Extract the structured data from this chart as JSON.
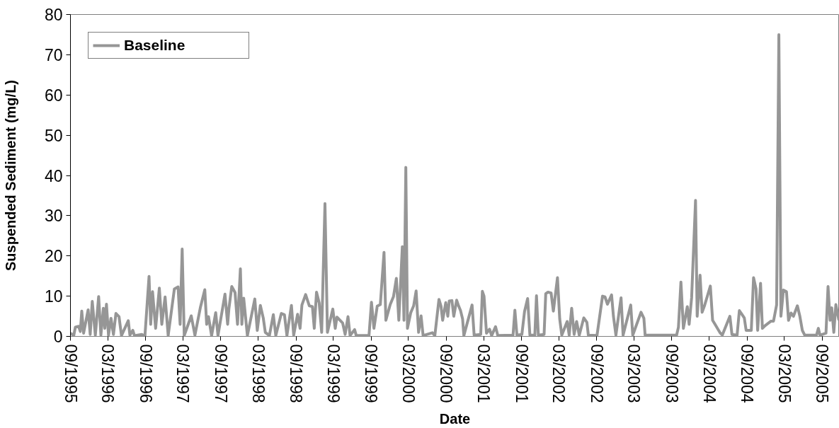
{
  "chart_data": {
    "type": "line",
    "xlabel": "Date",
    "ylabel": "Suspended Sediment (mg/L)",
    "legend": "top left",
    "line_style": "solid",
    "xlim": [
      "1995-09-01",
      "2005-11-24"
    ],
    "xticks": [
      {
        "value": "1995-09",
        "label": "09/1995"
      },
      {
        "value": "1996-03",
        "label": "03/1996"
      },
      {
        "value": "1996-09",
        "label": "09/1996"
      },
      {
        "value": "1997-03",
        "label": "03/1997"
      },
      {
        "value": "1997-09",
        "label": "09/1997"
      },
      {
        "value": "1998-03",
        "label": "03/1998"
      },
      {
        "value": "1998-09",
        "label": "09/1998"
      },
      {
        "value": "1999-03",
        "label": "03/1999"
      },
      {
        "value": "1999-09",
        "label": "09/1999"
      },
      {
        "value": "2000-03",
        "label": "03/2000"
      },
      {
        "value": "2000-09",
        "label": "09/2000"
      },
      {
        "value": "2001-03",
        "label": "03/2001"
      },
      {
        "value": "2001-09",
        "label": "09/2001"
      },
      {
        "value": "2002-03",
        "label": "03/2002"
      },
      {
        "value": "2002-09",
        "label": "09/2002"
      },
      {
        "value": "2003-03",
        "label": "03/2003"
      },
      {
        "value": "2003-09",
        "label": "09/2003"
      },
      {
        "value": "2004-03",
        "label": "03/2004"
      },
      {
        "value": "2004-09",
        "label": "09/2004"
      },
      {
        "value": "2005-03",
        "label": "03/2005"
      },
      {
        "value": "2005-09",
        "label": "09/2005"
      }
    ],
    "ylim": [
      0,
      80
    ],
    "yticks": [
      0,
      10,
      20,
      30,
      40,
      50,
      60,
      70,
      80
    ],
    "x": [
      "1995-09-01",
      "1995-09-17",
      "1995-09-25",
      "1995-10-11",
      "1995-10-19",
      "1995-10-26",
      "1995-11-04",
      "1995-11-26",
      "1995-12-06",
      "1995-12-16",
      "1995-12-31",
      "1996-01-16",
      "1996-01-27",
      "1996-02-08",
      "1996-02-15",
      "1996-02-23",
      "1996-03-04",
      "1996-03-16",
      "1996-03-28",
      "1996-04-09",
      "1996-04-24",
      "1996-05-06",
      "1996-06-08",
      "1996-06-16",
      "1996-06-30",
      "1996-07-08",
      "1996-08-13",
      "1996-08-28",
      "1996-09-17",
      "1996-09-25",
      "1996-10-04",
      "1996-10-19",
      "1996-11-06",
      "1996-11-18",
      "1996-12-04",
      "1996-12-19",
      "1997-01-18",
      "1997-02-05",
      "1997-02-15",
      "1997-02-25",
      "1997-03-07",
      "1997-04-10",
      "1997-04-28",
      "1997-05-25",
      "1997-06-15",
      "1997-06-24",
      "1997-07-03",
      "1997-07-18",
      "1997-08-07",
      "1997-08-18",
      "1997-09-21",
      "1997-10-04",
      "1997-10-10",
      "1997-10-24",
      "1997-11-09",
      "1997-11-21",
      "1997-12-05",
      "1997-12-12",
      "1997-12-21",
      "1998-01-08",
      "1998-02-13",
      "1998-02-25",
      "1998-03-12",
      "1998-03-26",
      "1998-04-05",
      "1998-04-25",
      "1998-05-14",
      "1998-05-26",
      "1998-06-22",
      "1998-07-07",
      "1998-07-19",
      "1998-08-10",
      "1998-08-21",
      "1998-09-09",
      "1998-09-21",
      "1998-09-30",
      "1998-10-18",
      "1998-11-05",
      "1998-11-20",
      "1998-11-29",
      "1998-12-10",
      "1998-12-23",
      "1999-01-04",
      "1999-01-20",
      "1999-02-01",
      "1999-02-27",
      "1999-03-11",
      "1999-03-19",
      "1999-04-16",
      "1999-04-28",
      "1999-05-12",
      "1999-05-22",
      "1999-06-13",
      "1999-06-21",
      "1999-08-22",
      "1999-09-03",
      "1999-09-15",
      "1999-10-01",
      "1999-10-16",
      "1999-11-03",
      "1999-11-12",
      "1999-12-03",
      "1999-12-19",
      "2000-01-02",
      "2000-01-14",
      "2000-01-31",
      "2000-02-08",
      "2000-02-17",
      "2000-02-25",
      "2000-03-12",
      "2000-03-26",
      "2000-04-07",
      "2000-04-19",
      "2000-05-01",
      "2000-05-11",
      "2000-06-25",
      "2000-07-07",
      "2000-07-27",
      "2000-08-06",
      "2000-08-14",
      "2000-08-29",
      "2000-09-08",
      "2000-09-15",
      "2000-09-28",
      "2000-10-07",
      "2000-10-21",
      "2000-10-31",
      "2000-11-09",
      "2000-11-19",
      "2000-11-25",
      "2001-01-04",
      "2001-01-14",
      "2001-02-15",
      "2001-02-23",
      "2001-03-03",
      "2001-03-15",
      "2001-03-30",
      "2001-04-09",
      "2001-04-28",
      "2001-05-09",
      "2001-07-22",
      "2001-07-31",
      "2001-08-10",
      "2001-09-03",
      "2001-09-16",
      "2001-10-01",
      "2001-10-12",
      "2001-11-05",
      "2001-11-13",
      "2001-11-22",
      "2001-12-20",
      "2001-12-28",
      "2002-01-08",
      "2002-01-23",
      "2002-02-03",
      "2002-02-23",
      "2002-03-06",
      "2002-03-16",
      "2002-04-11",
      "2002-04-21",
      "2002-05-03",
      "2002-05-15",
      "2002-05-27",
      "2002-06-09",
      "2002-07-01",
      "2002-07-16",
      "2002-07-23",
      "2002-09-03",
      "2002-09-30",
      "2002-10-12",
      "2002-10-24",
      "2002-11-13",
      "2002-11-22",
      "2002-12-04",
      "2002-12-29",
      "2003-01-08",
      "2003-02-14",
      "2003-02-24",
      "2003-04-05",
      "2003-04-19",
      "2003-04-25",
      "2003-09-25",
      "2003-10-04",
      "2003-10-16",
      "2003-10-28",
      "2003-11-16",
      "2003-11-25",
      "2003-12-07",
      "2003-12-26",
      "2004-01-03",
      "2004-01-17",
      "2004-01-27",
      "2004-02-08",
      "2004-03-07",
      "2004-03-18",
      "2004-03-30",
      "2004-04-22",
      "2004-05-04",
      "2004-06-10",
      "2004-06-20",
      "2004-07-15",
      "2004-07-26",
      "2004-08-07",
      "2004-08-19",
      "2004-08-28",
      "2004-09-22",
      "2004-10-03",
      "2004-10-15",
      "2004-10-23",
      "2004-11-06",
      "2004-11-15",
      "2004-11-29",
      "2004-12-27",
      "2005-01-08",
      "2005-01-23",
      "2005-02-03",
      "2005-02-13",
      "2005-02-25",
      "2005-03-12",
      "2005-03-22",
      "2005-04-03",
      "2005-04-15",
      "2005-05-04",
      "2005-05-16",
      "2005-05-28",
      "2005-06-09",
      "2005-08-05",
      "2005-08-14",
      "2005-08-22",
      "2005-09-20",
      "2005-09-30",
      "2005-10-10",
      "2005-10-18",
      "2005-10-28",
      "2005-11-07",
      "2005-11-22"
    ],
    "series": [
      {
        "name": "Baseline",
        "color": "#969696",
        "values": [
          0.8,
          0.2,
          2.3,
          2.5,
          1.2,
          6.3,
          0.8,
          6.6,
          0.5,
          8.7,
          0.3,
          9.9,
          0.3,
          7.0,
          2.0,
          8.0,
          0.3,
          4.5,
          0.5,
          5.7,
          4.9,
          0.2,
          3.9,
          0.3,
          1.5,
          0.2,
          0.5,
          0.1,
          14.9,
          3.0,
          11.1,
          2.0,
          12.0,
          3.0,
          9.8,
          0.2,
          11.8,
          12.3,
          3.0,
          21.7,
          0.2,
          5.1,
          0.3,
          7.3,
          11.6,
          3.0,
          4.9,
          0.2,
          5.9,
          0.2,
          10.5,
          3.0,
          6.8,
          12.4,
          10.9,
          3.0,
          16.8,
          3.0,
          9.5,
          0.2,
          9.3,
          1.5,
          7.7,
          4.6,
          1.0,
          0.2,
          5.4,
          0.2,
          5.7,
          5.4,
          0.2,
          7.7,
          0.3,
          5.5,
          2.0,
          7.8,
          10.4,
          7.6,
          7.4,
          2.0,
          11.0,
          8.3,
          1.0,
          33.0,
          1.0,
          6.8,
          2.0,
          4.8,
          3.3,
          0.5,
          4.9,
          0.2,
          1.7,
          0.2,
          0.2,
          8.5,
          2.0,
          7.5,
          7.9,
          20.9,
          4.0,
          7.9,
          9.9,
          14.4,
          4.0,
          22.3,
          4.0,
          42.0,
          2.0,
          5.9,
          7.6,
          11.3,
          1.0,
          5.1,
          0.2,
          0.9,
          0.2,
          9.2,
          7.5,
          4.0,
          8.4,
          5.0,
          8.8,
          8.9,
          5.0,
          9.0,
          7.5,
          6.4,
          4.3,
          0.2,
          7.8,
          0.3,
          0.5,
          11.2,
          10.0,
          0.8,
          1.8,
          0.2,
          2.4,
          0.2,
          0.3,
          6.5,
          0.3,
          0.5,
          6.2,
          9.4,
          0.3,
          0.3,
          10.1,
          0.3,
          0.5,
          10.6,
          11.0,
          10.8,
          6.3,
          14.6,
          4.3,
          0.3,
          3.7,
          0.3,
          7.0,
          0.5,
          3.7,
          0.3,
          4.6,
          3.5,
          0.3,
          0.2,
          10.0,
          9.8,
          8.0,
          10.3,
          5.0,
          0.3,
          9.6,
          0.3,
          7.8,
          0.3,
          6.0,
          4.5,
          0.3,
          0.3,
          2.3,
          13.5,
          2.0,
          7.4,
          3.0,
          9.6,
          33.8,
          5.0,
          15.2,
          6.0,
          7.7,
          12.5,
          4.0,
          3.0,
          1.0,
          0.3,
          5.0,
          0.5,
          0.3,
          6.4,
          5.5,
          4.6,
          1.5,
          1.5,
          14.6,
          11.8,
          1.5,
          13.2,
          2.0,
          2.7,
          3.8,
          3.8,
          7.8,
          75.0,
          5.0,
          11.5,
          11.1,
          4.0,
          5.8,
          5.0,
          7.6,
          5.0,
          1.5,
          0.3,
          0.3,
          2.0,
          0.3,
          0.8,
          12.4,
          4.0,
          7.1,
          1.0,
          7.9,
          4.0
        ]
      }
    ]
  }
}
